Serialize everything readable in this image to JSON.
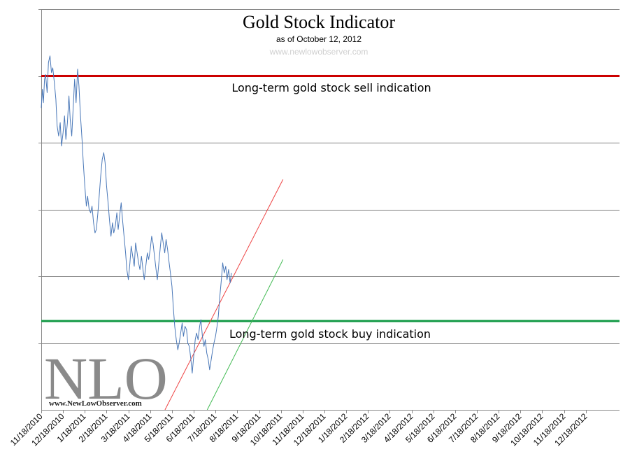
{
  "chart_data": {
    "type": "line",
    "title": "Gold Stock Indicator",
    "subtitle": "as of October 12, 2012",
    "source": "www.newlowobserver.com",
    "x_tick_labels": [
      "11/18/2010",
      "12/18/2010",
      "1/18/2011",
      "2/18/2011",
      "3/18/2011",
      "4/18/2011",
      "5/18/2011",
      "6/18/2011",
      "7/18/2011",
      "8/18/2011",
      "9/18/2011",
      "10/18/2011",
      "11/18/2011",
      "12/18/2011",
      "1/18/2012",
      "2/18/2012",
      "3/18/2012",
      "4/18/2012",
      "5/18/2012",
      "6/18/2012",
      "7/18/2012",
      "8/18/2012",
      "9/18/2012",
      "10/18/2012",
      "11/18/2012",
      "12/18/2012"
    ],
    "ylim": [
      0,
      6
    ],
    "y_gridlines": [
      1,
      2,
      3,
      4,
      5,
      6
    ],
    "series": [
      {
        "color": "#4a78b8",
        "points": [
          [
            0,
            4.52
          ],
          [
            0.05,
            4.8
          ],
          [
            0.1,
            4.6
          ],
          [
            0.15,
            4.95
          ],
          [
            0.2,
            5.02
          ],
          [
            0.27,
            4.75
          ],
          [
            0.33,
            5.2
          ],
          [
            0.4,
            5.3
          ],
          [
            0.47,
            5.05
          ],
          [
            0.53,
            5.12
          ],
          [
            0.6,
            4.9
          ],
          [
            0.67,
            4.65
          ],
          [
            0.73,
            4.25
          ],
          [
            0.8,
            4.1
          ],
          [
            0.87,
            4.3
          ],
          [
            0.93,
            3.95
          ],
          [
            1.0,
            4.15
          ],
          [
            1.07,
            4.4
          ],
          [
            1.13,
            4.05
          ],
          [
            1.2,
            4.3
          ],
          [
            1.27,
            4.7
          ],
          [
            1.33,
            4.35
          ],
          [
            1.4,
            4.1
          ],
          [
            1.47,
            4.55
          ],
          [
            1.53,
            4.95
          ],
          [
            1.6,
            4.6
          ],
          [
            1.67,
            5.1
          ],
          [
            1.73,
            4.85
          ],
          [
            1.8,
            4.4
          ],
          [
            1.87,
            4.05
          ],
          [
            1.93,
            3.7
          ],
          [
            2.0,
            3.35
          ],
          [
            2.07,
            3.05
          ],
          [
            2.13,
            3.2
          ],
          [
            2.2,
            3.0
          ],
          [
            2.27,
            2.95
          ],
          [
            2.33,
            3.05
          ],
          [
            2.4,
            2.8
          ],
          [
            2.47,
            2.65
          ],
          [
            2.53,
            2.7
          ],
          [
            2.6,
            2.95
          ],
          [
            2.67,
            3.25
          ],
          [
            2.73,
            3.5
          ],
          [
            2.8,
            3.75
          ],
          [
            2.87,
            3.85
          ],
          [
            2.93,
            3.7
          ],
          [
            3.0,
            3.35
          ],
          [
            3.07,
            3.1
          ],
          [
            3.13,
            2.85
          ],
          [
            3.2,
            2.6
          ],
          [
            3.27,
            2.8
          ],
          [
            3.33,
            2.65
          ],
          [
            3.4,
            2.75
          ],
          [
            3.47,
            2.95
          ],
          [
            3.53,
            2.7
          ],
          [
            3.6,
            2.9
          ],
          [
            3.67,
            3.1
          ],
          [
            3.73,
            2.85
          ],
          [
            3.8,
            2.6
          ],
          [
            3.87,
            2.35
          ],
          [
            3.93,
            2.1
          ],
          [
            4.0,
            1.95
          ],
          [
            4.07,
            2.2
          ],
          [
            4.13,
            2.45
          ],
          [
            4.2,
            2.3
          ],
          [
            4.27,
            2.15
          ],
          [
            4.33,
            2.5
          ],
          [
            4.4,
            2.35
          ],
          [
            4.47,
            2.2
          ],
          [
            4.53,
            2.1
          ],
          [
            4.6,
            2.3
          ],
          [
            4.67,
            2.1
          ],
          [
            4.73,
            1.95
          ],
          [
            4.8,
            2.15
          ],
          [
            4.87,
            2.35
          ],
          [
            4.93,
            2.25
          ],
          [
            5.0,
            2.4
          ],
          [
            5.07,
            2.6
          ],
          [
            5.13,
            2.5
          ],
          [
            5.2,
            2.3
          ],
          [
            5.27,
            2.1
          ],
          [
            5.33,
            1.95
          ],
          [
            5.4,
            2.2
          ],
          [
            5.47,
            2.45
          ],
          [
            5.53,
            2.65
          ],
          [
            5.6,
            2.5
          ],
          [
            5.67,
            2.35
          ],
          [
            5.73,
            2.55
          ],
          [
            5.8,
            2.4
          ],
          [
            5.87,
            2.2
          ],
          [
            5.93,
            2.05
          ],
          [
            6.0,
            1.85
          ],
          [
            6.07,
            1.5
          ],
          [
            6.13,
            1.25
          ],
          [
            6.2,
            1.05
          ],
          [
            6.27,
            0.9
          ],
          [
            6.33,
            1.0
          ],
          [
            6.4,
            1.15
          ],
          [
            6.47,
            1.3
          ],
          [
            6.53,
            1.1
          ],
          [
            6.6,
            1.25
          ],
          [
            6.67,
            1.2
          ],
          [
            6.73,
            1.0
          ],
          [
            6.8,
            0.95
          ],
          [
            6.87,
            0.75
          ],
          [
            6.93,
            0.55
          ],
          [
            7.0,
            0.8
          ],
          [
            7.07,
            1.05
          ],
          [
            7.13,
            1.15
          ],
          [
            7.2,
            1.05
          ],
          [
            7.27,
            1.25
          ],
          [
            7.33,
            1.35
          ],
          [
            7.4,
            1.1
          ],
          [
            7.47,
            0.95
          ],
          [
            7.53,
            1.05
          ],
          [
            7.6,
            0.85
          ],
          [
            7.67,
            0.75
          ],
          [
            7.73,
            0.6
          ],
          [
            7.8,
            0.75
          ],
          [
            7.87,
            0.9
          ],
          [
            7.93,
            1.0
          ],
          [
            8.0,
            1.1
          ],
          [
            8.07,
            1.25
          ],
          [
            8.13,
            1.4
          ],
          [
            8.2,
            1.7
          ],
          [
            8.27,
            1.95
          ],
          [
            8.33,
            2.2
          ],
          [
            8.4,
            2.05
          ],
          [
            8.47,
            2.15
          ],
          [
            8.53,
            1.95
          ],
          [
            8.6,
            2.1
          ],
          [
            8.67,
            1.9
          ],
          [
            8.73,
            2.05
          ]
        ]
      }
    ],
    "horizontal_levels": [
      {
        "label": "Long-term gold stock sell indication",
        "y": 5.0,
        "color": "#cc0000"
      },
      {
        "label": "Long-term gold stock buy indication",
        "y": 1.33,
        "color": "#119944"
      }
    ],
    "trend_lines": [
      {
        "color": "#ee4444",
        "from": [
          5.68,
          0
        ],
        "to": [
          11.1,
          3.45
        ]
      },
      {
        "color": "#44bb55",
        "from": [
          7.62,
          0
        ],
        "to": [
          11.1,
          2.25
        ]
      }
    ],
    "logo_text": "NLO",
    "logo_url": "www.NewLowObserver.com"
  }
}
